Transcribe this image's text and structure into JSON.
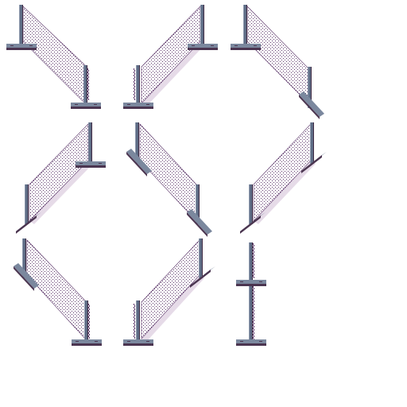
{
  "sprite_sheet": {
    "background": "#ffffff",
    "colors": {
      "post": "#5f6d86",
      "post_light": "#8d99ad",
      "post_dark": "#3f2a43",
      "base_top": "#7b889e",
      "base_side": "#4b3550",
      "mesh": "#5a3468",
      "shadow": "#e6dbe8"
    },
    "sprites": [
      {
        "name": "fence-diagonal-down-a",
        "orientation": "down-right",
        "icon": "chain-link-fence"
      },
      {
        "name": "fence-diagonal-up-a",
        "orientation": "up-right",
        "icon": "chain-link-fence"
      },
      {
        "name": "fence-diagonal-down-corner-a",
        "orientation": "down-right",
        "icon": "chain-link-fence"
      },
      {
        "name": "fence-diagonal-up-b",
        "orientation": "up-right",
        "icon": "chain-link-fence"
      },
      {
        "name": "fence-diagonal-down-b",
        "orientation": "down-right",
        "icon": "chain-link-fence"
      },
      {
        "name": "fence-diagonal-up-corner-b",
        "orientation": "up-right",
        "icon": "chain-link-fence"
      },
      {
        "name": "fence-diagonal-down-c",
        "orientation": "down-right",
        "icon": "chain-link-fence"
      },
      {
        "name": "fence-diagonal-up-c",
        "orientation": "up-right",
        "icon": "chain-link-fence"
      },
      {
        "name": "fence-end-post",
        "orientation": "vertical",
        "icon": "fence-post"
      }
    ]
  }
}
